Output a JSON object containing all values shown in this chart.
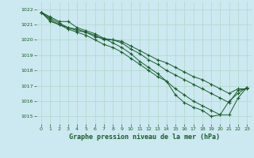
{
  "title": "Graphe pression niveau de la mer (hPa)",
  "background_color": "#cce8f0",
  "grid_color": "#b0d8cc",
  "line_color": "#1a5c2a",
  "xlim": [
    -0.5,
    23.5
  ],
  "ylim": [
    1014.5,
    1022.5
  ],
  "yticks": [
    1015,
    1016,
    1017,
    1018,
    1019,
    1020,
    1021,
    1022
  ],
  "xticks": [
    0,
    1,
    2,
    3,
    4,
    5,
    6,
    7,
    8,
    9,
    10,
    11,
    12,
    13,
    14,
    15,
    16,
    17,
    18,
    19,
    20,
    21,
    22,
    23
  ],
  "series1": [
    1021.8,
    1021.5,
    1021.2,
    1021.2,
    1020.8,
    1020.6,
    1020.4,
    1020.1,
    1020.0,
    1019.9,
    1019.6,
    1019.3,
    1019.0,
    1018.7,
    1018.5,
    1018.2,
    1017.9,
    1017.6,
    1017.4,
    1017.1,
    1016.8,
    1016.5,
    1016.8,
    1016.8
  ],
  "series2": [
    1021.8,
    1021.4,
    1021.1,
    1020.8,
    1020.7,
    1020.5,
    1020.3,
    1020.0,
    1020.0,
    1019.8,
    1019.4,
    1019.1,
    1018.7,
    1018.4,
    1018.0,
    1017.7,
    1017.4,
    1017.1,
    1016.8,
    1016.5,
    1016.2,
    1015.9,
    1016.7,
    1016.8
  ],
  "series3": [
    1021.8,
    1021.3,
    1021.0,
    1020.8,
    1020.6,
    1020.5,
    1020.2,
    1020.1,
    1019.8,
    1019.5,
    1019.1,
    1018.6,
    1018.2,
    1017.8,
    1017.3,
    1016.8,
    1016.4,
    1016.0,
    1015.7,
    1015.4,
    1015.1,
    1015.1,
    1016.2,
    1016.9
  ],
  "series4": [
    1021.8,
    1021.2,
    1021.0,
    1020.7,
    1020.5,
    1020.3,
    1020.0,
    1019.7,
    1019.5,
    1019.2,
    1018.8,
    1018.4,
    1018.0,
    1017.6,
    1017.3,
    1016.4,
    1015.9,
    1015.6,
    1015.4,
    1015.0,
    1015.1,
    1016.0,
    1016.5,
    1016.9
  ]
}
